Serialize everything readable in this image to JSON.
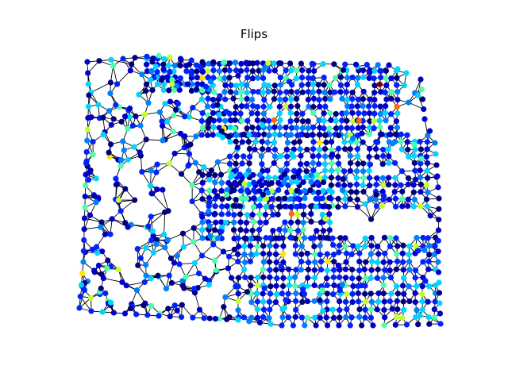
{
  "figure": {
    "title": "Flips"
  },
  "chart_data": {
    "type": "network",
    "title": "Flips",
    "colormap": "jet",
    "edge_color": "#000000",
    "node_palette": [
      "#00007f",
      "#0000c8",
      "#0022ff",
      "#0080ff",
      "#00d4ff",
      "#4cffaa",
      "#c4ff32",
      "#ffe500",
      "#ff6a00",
      "#7f0000"
    ],
    "node_color_weights": [
      18,
      22,
      26,
      12,
      14,
      4,
      2,
      0.6,
      0.5,
      0.1
    ],
    "grid": false,
    "axes_visible": false,
    "legend": "none"
  }
}
